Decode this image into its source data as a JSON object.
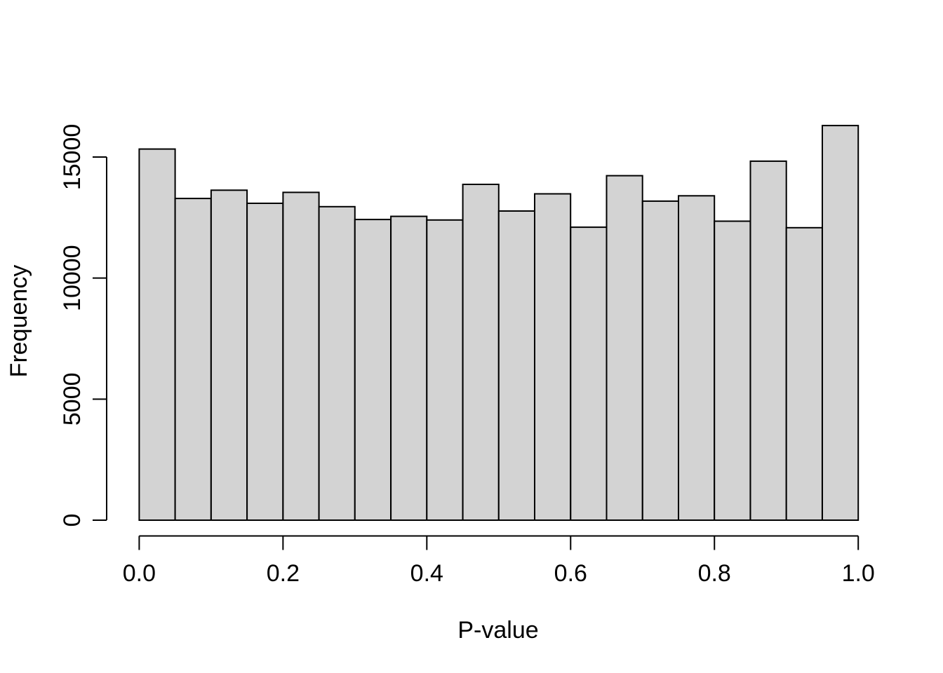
{
  "chart_data": {
    "type": "bar",
    "subtype": "histogram",
    "title": "",
    "xlabel": "P-value",
    "ylabel": "Frequency",
    "xlim": [
      0.0,
      1.0
    ],
    "ylim": [
      0,
      15000
    ],
    "grid": false,
    "legend_position": "none",
    "bin_start": 0.0,
    "bin_width": 0.05,
    "bin_edges": [
      0.0,
      0.05,
      0.1,
      0.15,
      0.2,
      0.25,
      0.3,
      0.35,
      0.4,
      0.45,
      0.5,
      0.55,
      0.6,
      0.65,
      0.7,
      0.75,
      0.8,
      0.85,
      0.9,
      0.95,
      1.0
    ],
    "values": [
      15330,
      13290,
      13630,
      13090,
      13540,
      12950,
      12420,
      12550,
      12400,
      13870,
      12770,
      13480,
      12100,
      14230,
      13180,
      13400,
      12350,
      14830,
      12080,
      16300
    ],
    "x_ticks": [
      0.0,
      0.2,
      0.4,
      0.6,
      0.8,
      1.0
    ],
    "x_tick_labels": [
      "0.0",
      "0.2",
      "0.4",
      "0.6",
      "0.8",
      "1.0"
    ],
    "y_ticks": [
      0,
      5000,
      10000,
      15000
    ],
    "y_tick_labels": [
      "0",
      "5000",
      "10000",
      "15000"
    ],
    "colors": {
      "bar_fill": "#d3d3d3",
      "bar_stroke": "#000000",
      "axis": "#000000",
      "text": "#000000",
      "background": "#ffffff"
    }
  }
}
